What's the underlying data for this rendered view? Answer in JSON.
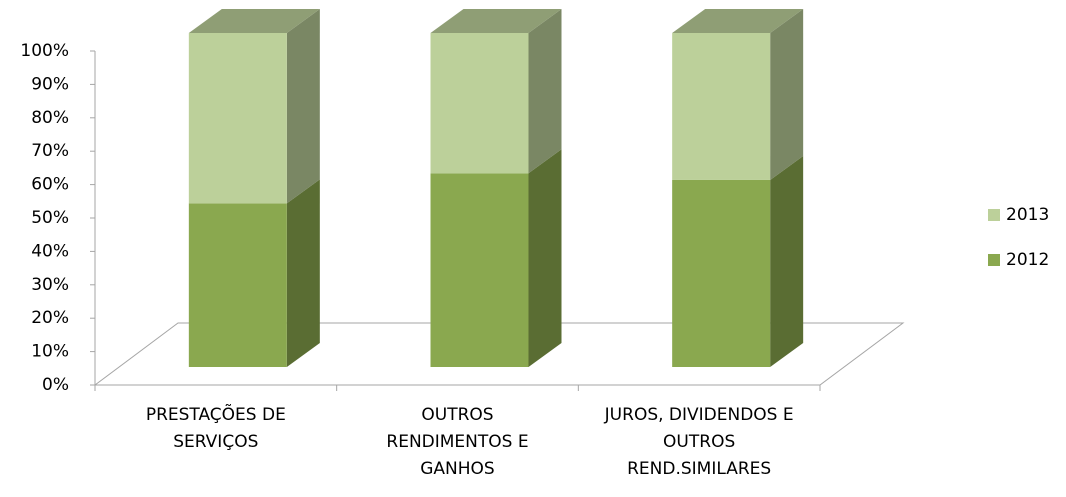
{
  "chart_data": {
    "type": "bar",
    "stacked": true,
    "categories": [
      "PRESTAÇÕES DE SERVIÇOS",
      "OUTROS RENDIMENTOS E GANHOS",
      "JUROS, DIVIDENDOS E OUTROS REND.SIMILARES"
    ],
    "series": [
      {
        "name": "2012",
        "color": "#8aa84f",
        "values": [
          49,
          58,
          56
        ]
      },
      {
        "name": "2013",
        "color": "#bcd09a",
        "values": [
          51,
          42,
          44
        ]
      }
    ],
    "ylim": [
      0,
      100
    ],
    "yticks": [
      {
        "value": 0,
        "label": "0%"
      },
      {
        "value": 10,
        "label": "10%"
      },
      {
        "value": 20,
        "label": "20%"
      },
      {
        "value": 30,
        "label": "30%"
      },
      {
        "value": 40,
        "label": "40%"
      },
      {
        "value": 50,
        "label": "50%"
      },
      {
        "value": 60,
        "label": "60%"
      },
      {
        "value": 70,
        "label": "70%"
      },
      {
        "value": 80,
        "label": "80%"
      },
      {
        "value": 90,
        "label": "90%"
      },
      {
        "value": 100,
        "label": "100%"
      }
    ],
    "legend": "right"
  }
}
